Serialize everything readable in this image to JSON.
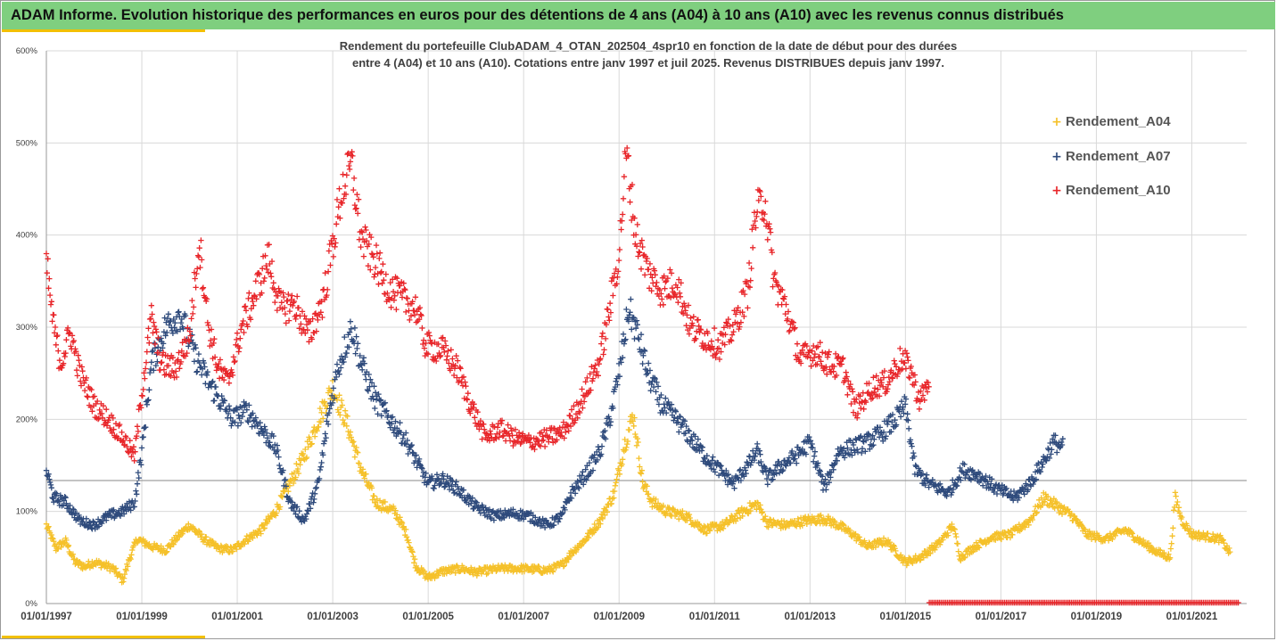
{
  "header": {
    "title": "ADAM Informe. Evolution historique des performances en euros pour des détentions de 4 ans (A04) à 10 ans (A10) avec les revenus connus distribués"
  },
  "colors": {
    "banner": "#7fcf7f",
    "accent": "#f2c000",
    "A04": "#f5c12a",
    "A07": "#2f4b7c",
    "A10": "#e8262a"
  },
  "chart_data": {
    "type": "scatter",
    "title_lines": [
      "Rendement du portefeuille ClubADAM_4_OTAN_202504_4spr10  en fonction de la date de début pour des durées",
      "entre 4 (A04) et 10 ans (A10). Cotations entre janv 1997 et juil 2025. Revenus DISTRIBUES depuis janv 1997."
    ],
    "y_ticks": [
      "0%",
      "100%",
      "200%",
      "300%",
      "400%",
      "500%",
      "600%"
    ],
    "x_ticks": [
      "01/01/1997",
      "01/01/1999",
      "01/01/2001",
      "01/01/2003",
      "01/01/2005",
      "01/01/2007",
      "01/01/2009",
      "01/01/2011",
      "01/01/2013",
      "01/01/2015",
      "01/01/2017",
      "01/01/2019",
      "01/01/2021"
    ],
    "ylim": [
      0,
      600
    ],
    "xlim": [
      1997.0,
      2022.15
    ],
    "grid": true,
    "legend_position": "top-right",
    "series": [
      {
        "name": "Rendement_A04",
        "key": "A04",
        "x_range": [
          1997.0,
          2021.8
        ],
        "points": [
          [
            1997.0,
            85
          ],
          [
            1997.2,
            60
          ],
          [
            1997.4,
            68
          ],
          [
            1997.6,
            45
          ],
          [
            1997.8,
            40
          ],
          [
            1998.0,
            45
          ],
          [
            1998.2,
            42
          ],
          [
            1998.4,
            38
          ],
          [
            1998.6,
            25
          ],
          [
            1998.75,
            50
          ],
          [
            1998.9,
            70
          ],
          [
            1999.2,
            62
          ],
          [
            1999.5,
            58
          ],
          [
            1999.8,
            75
          ],
          [
            2000.0,
            85
          ],
          [
            2000.3,
            70
          ],
          [
            2000.6,
            60
          ],
          [
            2000.9,
            58
          ],
          [
            2001.2,
            70
          ],
          [
            2001.5,
            80
          ],
          [
            2001.8,
            100
          ],
          [
            2002.1,
            130
          ],
          [
            2002.4,
            160
          ],
          [
            2002.7,
            200
          ],
          [
            2003.0,
            235
          ],
          [
            2003.3,
            195
          ],
          [
            2003.6,
            145
          ],
          [
            2003.9,
            110
          ],
          [
            2004.3,
            100
          ],
          [
            2004.55,
            75
          ],
          [
            2004.75,
            40
          ],
          [
            2005.0,
            28
          ],
          [
            2005.3,
            35
          ],
          [
            2005.7,
            38
          ],
          [
            2006.0,
            34
          ],
          [
            2006.5,
            38
          ],
          [
            2007.0,
            38
          ],
          [
            2007.5,
            36
          ],
          [
            2007.8,
            42
          ],
          [
            2008.0,
            55
          ],
          [
            2008.3,
            70
          ],
          [
            2008.6,
            90
          ],
          [
            2008.9,
            120
          ],
          [
            2009.1,
            170
          ],
          [
            2009.3,
            205
          ],
          [
            2009.5,
            130
          ],
          [
            2009.7,
            110
          ],
          [
            2010.0,
            100
          ],
          [
            2010.4,
            95
          ],
          [
            2010.8,
            80
          ],
          [
            2011.2,
            85
          ],
          [
            2011.6,
            100
          ],
          [
            2011.9,
            108
          ],
          [
            2012.1,
            88
          ],
          [
            2012.5,
            85
          ],
          [
            2012.9,
            90
          ],
          [
            2013.3,
            92
          ],
          [
            2013.6,
            85
          ],
          [
            2013.9,
            75
          ],
          [
            2014.2,
            62
          ],
          [
            2014.6,
            68
          ],
          [
            2015.0,
            45
          ],
          [
            2015.3,
            50
          ],
          [
            2015.7,
            65
          ],
          [
            2016.0,
            85
          ],
          [
            2016.15,
            50
          ],
          [
            2016.4,
            60
          ],
          [
            2016.8,
            72
          ],
          [
            2017.2,
            75
          ],
          [
            2017.6,
            90
          ],
          [
            2017.9,
            115
          ],
          [
            2018.2,
            105
          ],
          [
            2018.5,
            95
          ],
          [
            2018.8,
            75
          ],
          [
            2019.2,
            70
          ],
          [
            2019.6,
            80
          ],
          [
            2020.0,
            65
          ],
          [
            2020.3,
            55
          ],
          [
            2020.55,
            50
          ],
          [
            2020.65,
            115
          ],
          [
            2020.8,
            90
          ],
          [
            2021.0,
            75
          ],
          [
            2021.3,
            73
          ],
          [
            2021.6,
            70
          ],
          [
            2021.8,
            55
          ]
        ]
      },
      {
        "name": "Rendement_A07",
        "key": "A07",
        "x_range": [
          1997.0,
          2018.3
        ],
        "points": [
          [
            1997.0,
            145
          ],
          [
            1997.15,
            115
          ],
          [
            1997.4,
            110
          ],
          [
            1997.7,
            90
          ],
          [
            1998.0,
            85
          ],
          [
            1998.3,
            95
          ],
          [
            1998.6,
            100
          ],
          [
            1998.85,
            110
          ],
          [
            1999.0,
            165
          ],
          [
            1999.2,
            260
          ],
          [
            1999.5,
            300
          ],
          [
            1999.8,
            315
          ],
          [
            2000.1,
            270
          ],
          [
            2000.4,
            240
          ],
          [
            2000.7,
            215
          ],
          [
            2000.9,
            200
          ],
          [
            2001.2,
            210
          ],
          [
            2001.5,
            190
          ],
          [
            2001.8,
            170
          ],
          [
            2002.1,
            110
          ],
          [
            2002.4,
            90
          ],
          [
            2002.7,
            130
          ],
          [
            2002.9,
            200
          ],
          [
            2003.1,
            255
          ],
          [
            2003.4,
            300
          ],
          [
            2003.6,
            260
          ],
          [
            2003.9,
            220
          ],
          [
            2004.2,
            200
          ],
          [
            2004.5,
            180
          ],
          [
            2004.8,
            150
          ],
          [
            2005.0,
            130
          ],
          [
            2005.3,
            135
          ],
          [
            2005.6,
            125
          ],
          [
            2006.0,
            105
          ],
          [
            2006.4,
            95
          ],
          [
            2006.8,
            98
          ],
          [
            2007.1,
            95
          ],
          [
            2007.5,
            85
          ],
          [
            2007.8,
            95
          ],
          [
            2008.0,
            120
          ],
          [
            2008.3,
            140
          ],
          [
            2008.6,
            165
          ],
          [
            2008.8,
            200
          ],
          [
            2009.0,
            250
          ],
          [
            2009.2,
            320
          ],
          [
            2009.4,
            290
          ],
          [
            2009.6,
            250
          ],
          [
            2009.9,
            215
          ],
          [
            2010.2,
            200
          ],
          [
            2010.5,
            180
          ],
          [
            2010.8,
            160
          ],
          [
            2011.1,
            145
          ],
          [
            2011.4,
            130
          ],
          [
            2011.7,
            150
          ],
          [
            2011.9,
            165
          ],
          [
            2012.1,
            135
          ],
          [
            2012.4,
            150
          ],
          [
            2012.7,
            160
          ],
          [
            2013.0,
            175
          ],
          [
            2013.3,
            125
          ],
          [
            2013.6,
            165
          ],
          [
            2013.9,
            170
          ],
          [
            2014.2,
            175
          ],
          [
            2014.5,
            185
          ],
          [
            2014.8,
            200
          ],
          [
            2015.0,
            215
          ],
          [
            2015.2,
            145
          ],
          [
            2015.5,
            130
          ],
          [
            2015.9,
            120
          ],
          [
            2016.2,
            145
          ],
          [
            2016.5,
            140
          ],
          [
            2016.9,
            125
          ],
          [
            2017.3,
            115
          ],
          [
            2017.6,
            130
          ],
          [
            2017.9,
            155
          ],
          [
            2018.1,
            175
          ],
          [
            2018.3,
            170
          ]
        ]
      },
      {
        "name": "Rendement_A10",
        "key": "A10",
        "x_range": [
          1997.0,
          2015.5
        ],
        "points": [
          [
            1997.0,
            370
          ],
          [
            1997.15,
            300
          ],
          [
            1997.3,
            260
          ],
          [
            1997.5,
            295
          ],
          [
            1997.7,
            250
          ],
          [
            1998.0,
            215
          ],
          [
            1998.3,
            200
          ],
          [
            1998.6,
            180
          ],
          [
            1998.85,
            160
          ],
          [
            1999.0,
            230
          ],
          [
            1999.2,
            310
          ],
          [
            1999.4,
            260
          ],
          [
            1999.7,
            255
          ],
          [
            2000.0,
            290
          ],
          [
            2000.2,
            395
          ],
          [
            2000.4,
            300
          ],
          [
            2000.6,
            255
          ],
          [
            2000.8,
            240
          ],
          [
            2001.1,
            300
          ],
          [
            2001.4,
            340
          ],
          [
            2001.65,
            375
          ],
          [
            2001.9,
            320
          ],
          [
            2002.2,
            325
          ],
          [
            2002.5,
            290
          ],
          [
            2002.8,
            330
          ],
          [
            2003.0,
            390
          ],
          [
            2003.2,
            450
          ],
          [
            2003.4,
            475
          ],
          [
            2003.6,
            395
          ],
          [
            2003.9,
            370
          ],
          [
            2004.2,
            340
          ],
          [
            2004.5,
            330
          ],
          [
            2004.75,
            320
          ],
          [
            2004.95,
            280
          ],
          [
            2005.3,
            275
          ],
          [
            2005.6,
            255
          ],
          [
            2005.9,
            215
          ],
          [
            2006.2,
            180
          ],
          [
            2006.5,
            190
          ],
          [
            2006.8,
            180
          ],
          [
            2007.1,
            175
          ],
          [
            2007.5,
            180
          ],
          [
            2007.8,
            185
          ],
          [
            2008.0,
            200
          ],
          [
            2008.3,
            230
          ],
          [
            2008.6,
            265
          ],
          [
            2008.8,
            320
          ],
          [
            2009.0,
            380
          ],
          [
            2009.15,
            490
          ],
          [
            2009.35,
            400
          ],
          [
            2009.6,
            360
          ],
          [
            2009.9,
            340
          ],
          [
            2010.2,
            350
          ],
          [
            2010.5,
            300
          ],
          [
            2010.8,
            290
          ],
          [
            2011.1,
            280
          ],
          [
            2011.4,
            300
          ],
          [
            2011.7,
            340
          ],
          [
            2011.85,
            420
          ],
          [
            2012.05,
            440
          ],
          [
            2012.25,
            350
          ],
          [
            2012.5,
            320
          ],
          [
            2012.8,
            265
          ],
          [
            2013.1,
            275
          ],
          [
            2013.4,
            260
          ],
          [
            2013.7,
            255
          ],
          [
            2013.95,
            210
          ],
          [
            2014.3,
            235
          ],
          [
            2014.6,
            240
          ],
          [
            2014.9,
            265
          ],
          [
            2015.1,
            255
          ],
          [
            2015.3,
            220
          ],
          [
            2015.5,
            240
          ]
        ]
      },
      {
        "name": "",
        "key": "A10_zero",
        "x_range": [
          2015.5,
          2022.0
        ],
        "points": [
          [
            2015.5,
            0
          ],
          [
            2022.0,
            0
          ]
        ]
      }
    ]
  },
  "legend": {
    "entries": [
      {
        "label": "Rendement_A04",
        "key": "A04"
      },
      {
        "label": "Rendement_A07",
        "key": "A07"
      },
      {
        "label": "Rendement_A10",
        "key": "A10"
      }
    ]
  }
}
